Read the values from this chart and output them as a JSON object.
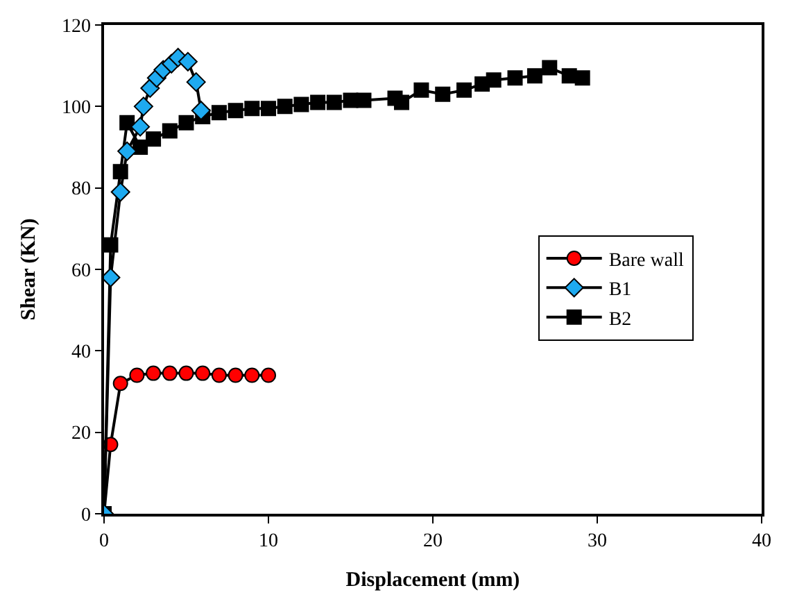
{
  "chart_data": {
    "type": "line",
    "xlabel": "Displacement (mm)",
    "ylabel": "Shear (KN)",
    "xlim": [
      0,
      40
    ],
    "ylim": [
      0,
      120
    ],
    "xticks": [
      0,
      10,
      20,
      30,
      40
    ],
    "yticks": [
      0,
      20,
      40,
      60,
      80,
      100,
      120
    ],
    "legend": "right",
    "line_style": "solid",
    "series": [
      {
        "name": "Bare wall",
        "color": "#ff0000",
        "marker": "circle",
        "x": [
          0,
          0.4,
          1,
          2,
          3,
          4,
          5,
          6,
          7,
          8,
          9,
          10
        ],
        "values": [
          0,
          17,
          32,
          34,
          34.5,
          34.5,
          34.5,
          34.5,
          34,
          34,
          34,
          34
        ]
      },
      {
        "name": "B1",
        "color": "#1eaaf0",
        "marker": "diamond",
        "x": [
          0,
          0.4,
          1,
          1.4,
          2.2,
          2.4,
          2.8,
          3.2,
          3.6,
          4.1,
          4.5,
          5.1,
          5.6,
          5.9
        ],
        "values": [
          0,
          58,
          79,
          89,
          95,
          100,
          104.5,
          107,
          109,
          110.5,
          112,
          111,
          106,
          99
        ]
      },
      {
        "name": "B2",
        "color": "#000000",
        "marker": "square",
        "x": [
          0,
          0.4,
          1,
          1.4,
          2.2,
          3,
          4,
          5,
          6,
          7,
          8,
          9,
          10,
          11,
          12,
          13,
          14,
          15,
          15.8,
          17.7,
          18.1,
          19.3,
          20.6,
          21.9,
          23,
          23.7,
          25,
          26.2,
          27.1,
          28.3,
          29.1
        ],
        "values": [
          0,
          66,
          84,
          96,
          90,
          92,
          94,
          96,
          97.5,
          98.5,
          99,
          99.5,
          99.5,
          100,
          100.5,
          101,
          101,
          101.5,
          101.5,
          102,
          101,
          104,
          103,
          104,
          105.5,
          106.5,
          107,
          107.5,
          109.5,
          107.5,
          107
        ]
      }
    ]
  }
}
